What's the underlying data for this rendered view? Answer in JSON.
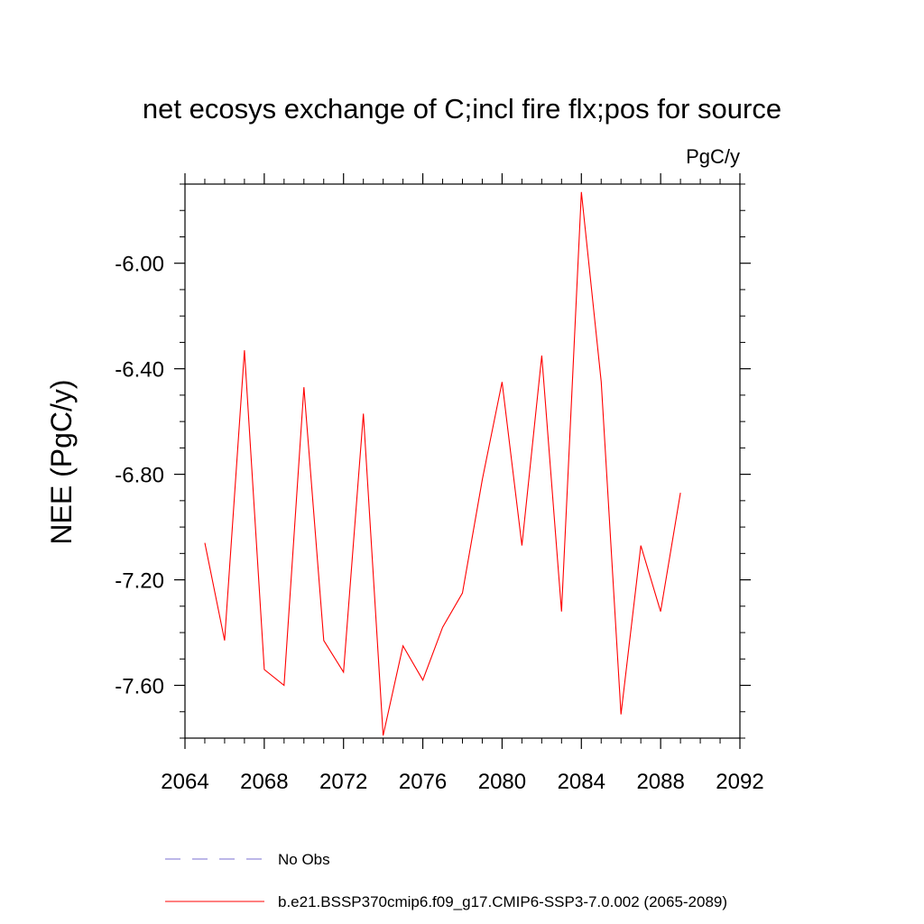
{
  "chart_data": {
    "type": "line",
    "title": "net ecosys exchange of C;incl fire flx;pos for source",
    "units_label": "PgC/y",
    "xlabel": "",
    "ylabel": "NEE  (PgC/y)",
    "xlim": [
      2064,
      2092
    ],
    "ylim": [
      -7.8,
      -5.7
    ],
    "x_ticks": [
      2064,
      2068,
      2072,
      2076,
      2080,
      2084,
      2088,
      2092
    ],
    "x_tick_labels": [
      "2064",
      "2068",
      "2072",
      "2076",
      "2080",
      "2084",
      "2088",
      "2092"
    ],
    "y_ticks": [
      -7.6,
      -7.2,
      -6.8,
      -6.4,
      -6.0
    ],
    "y_tick_labels": [
      "-7.60",
      "-7.20",
      "-6.80",
      "-6.40",
      "-6.00"
    ],
    "grid": false,
    "legend_position": "bottom",
    "series": [
      {
        "name": "No Obs",
        "color": "#7a6fd0",
        "style": "dashed",
        "x": [],
        "values": []
      },
      {
        "name": "b.e21.BSSP370cmip6.f09_g17.CMIP6-SSP3-7.0.002 (2065-2089)",
        "color": "#ff0000",
        "style": "solid",
        "x": [
          2065,
          2066,
          2067,
          2068,
          2069,
          2070,
          2071,
          2072,
          2073,
          2074,
          2075,
          2076,
          2077,
          2078,
          2079,
          2080,
          2081,
          2082,
          2083,
          2084,
          2085,
          2086,
          2087,
          2088,
          2089
        ],
        "values": [
          -7.06,
          -7.43,
          -6.33,
          -7.54,
          -7.6,
          -6.47,
          -7.43,
          -7.55,
          -6.57,
          -7.79,
          -7.45,
          -7.58,
          -7.38,
          -7.25,
          -6.82,
          -6.45,
          -7.07,
          -6.35,
          -7.32,
          -5.73,
          -6.45,
          -7.71,
          -7.07,
          -7.32,
          -6.87
        ]
      }
    ]
  }
}
